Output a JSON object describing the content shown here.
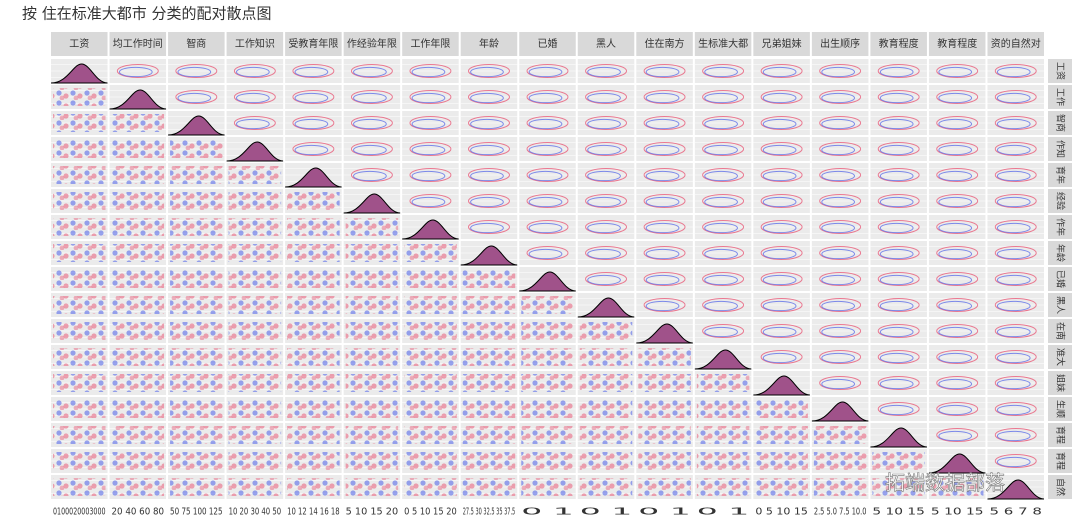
{
  "chart_data": {
    "type": "pairs",
    "title": "按 住在标准大都市 分类的配对散点图",
    "variables": [
      "工资",
      "均工作时间",
      "智商",
      "工作知识",
      "受教育年限",
      "作经验年限",
      "工作年限",
      "年龄",
      "已婚",
      "黑人",
      "住在南方",
      "生标准大都",
      "兄弟姐妹",
      "出生顺序",
      "教育程度",
      "教育程度",
      "资的自然对"
    ],
    "row_labels": [
      "工资",
      "工作",
      "智商",
      "作知",
      "育年",
      "经验",
      "作年",
      "年龄",
      "已婚",
      "黑人",
      "在南",
      "准大",
      "姐妹",
      "生顺",
      "育程",
      "育程",
      "自然"
    ],
    "x_tick_labels": [
      "0100020003000",
      "20 40 60 80",
      "50 75 100 125",
      "10 20 30 40 50",
      "10 12 14 16 18",
      "5 10 15 20",
      "0 5 10 15 20",
      "27.5 30 32.5 35 37.5",
      "0  1",
      "0  1",
      "0  1",
      "0  1",
      "0 5 10 15",
      "2.5 5.0 7.5 10.0",
      "5 10 15",
      "5 10 15",
      "5 6 7 8"
    ],
    "watermark": "拓端数据部落"
  }
}
